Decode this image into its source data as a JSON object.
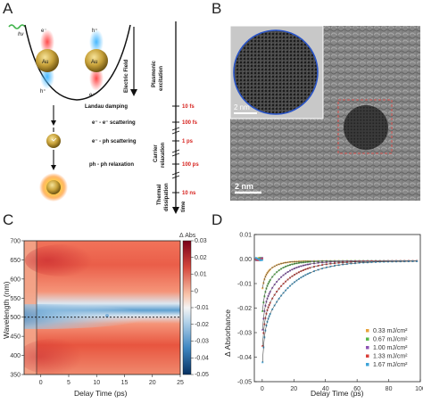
{
  "figure": {
    "panels": {
      "A": {
        "letter": "A",
        "au_label": "Au",
        "electron_label": "e⁻",
        "hole_label": "h⁺",
        "electric_field_label": "Electric Field",
        "plasmonic_label": "Plasmonic",
        "excitation_label": "excitation",
        "processes": [
          {
            "label": "Landau damping",
            "time": "10 fs"
          },
          {
            "label": "e⁻ - e⁻ scattering",
            "time": "100 fs"
          },
          {
            "label": "e⁻ - ph scattering",
            "time": "1 ps"
          },
          {
            "label": "ph - ph relaxation",
            "time": "100 ps"
          },
          {
            "label": "",
            "time": "10 ns"
          }
        ],
        "carrier_label": "Carrier",
        "relaxation_label": "relaxation",
        "thermal_label": "Thermal",
        "dissipation_label": "dissipation",
        "time_label": "time",
        "colors": {
          "time_red": "#d6221e",
          "gold": "#c8a23a",
          "electron_red": "#e02a2a",
          "hole_blue": "#3aa8e8"
        }
      },
      "B": {
        "letter": "B",
        "inset_scale_label": "2 nm",
        "main_scale_label": "2 nm",
        "colors": {
          "circle": "#2a55c8",
          "dashed_box": "#d9534f"
        }
      },
      "C": {
        "letter": "C",
        "ylabel": "Wavelength (nm)",
        "xlabel": "Delay Time (ps)",
        "colorbar_title": "Δ Abs",
        "yticks": [
          "700",
          "650",
          "600",
          "550",
          "500",
          "450",
          "400",
          "350"
        ],
        "xticks": [
          "0",
          "5",
          "10",
          "15",
          "20",
          "25"
        ],
        "cbar_ticks": [
          "0.03",
          "0.02",
          "0.01",
          "0",
          "-0.01",
          "-0.02",
          "-0.03",
          "-0.04",
          "-0.05"
        ]
      },
      "D": {
        "letter": "D",
        "ylabel": "Δ Absorbance",
        "xlabel": "Delay Time (ps)",
        "yticks": [
          "0.01",
          "0.00",
          "-0.01",
          "-0.02",
          "-0.03",
          "-0.04",
          "-0.05"
        ],
        "xticks": [
          "0",
          "20",
          "40",
          "60",
          "80",
          "100"
        ]
      }
    }
  },
  "chart_data": [
    {
      "type": "heatmap",
      "title": "",
      "xlabel": "Delay Time (ps)",
      "ylabel": "Wavelength (nm)",
      "xlim": [
        -3,
        25
      ],
      "ylim": [
        350,
        700
      ],
      "colorbar_label": "Δ Abs",
      "colorbar_range": [
        -0.05,
        0.03
      ],
      "colormap": "red-white-blue",
      "features": {
        "bleach_center_nm": 515,
        "bleach_min": -0.05,
        "positive_region_max": 0.03,
        "dashed_line_nm": 500
      }
    },
    {
      "type": "scatter",
      "title": "",
      "xlabel": "Delay Time (ps)",
      "ylabel": "Δ Absorbance",
      "xlim": [
        -5,
        100
      ],
      "ylim": [
        -0.05,
        0.01
      ],
      "legend_position": "bottom-right",
      "series": [
        {
          "name": "0.33 mJ/cm²",
          "color": "#e8a33c",
          "amplitude": -0.012,
          "tau_ps": 6
        },
        {
          "name": "0.67 mJ/cm²",
          "color": "#55b84a",
          "amplitude": -0.022,
          "tau_ps": 8
        },
        {
          "name": "1.00 mJ/cm²",
          "color": "#8e54b5",
          "amplitude": -0.03,
          "tau_ps": 11
        },
        {
          "name": "1.33 mJ/cm²",
          "color": "#d9403a",
          "amplitude": -0.037,
          "tau_ps": 14
        },
        {
          "name": "1.67 mJ/cm²",
          "color": "#3fa4d8",
          "amplitude": -0.044,
          "tau_ps": 17
        }
      ]
    }
  ]
}
